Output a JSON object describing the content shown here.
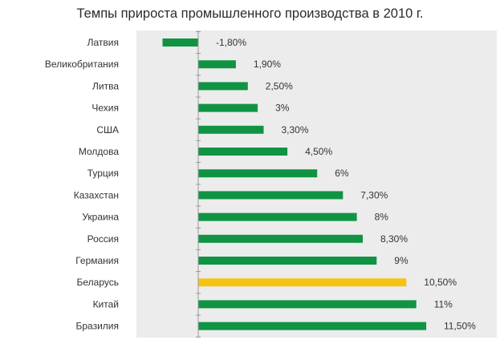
{
  "chart_data": {
    "type": "bar",
    "orientation": "horizontal",
    "title": "Темпы прироста промышленного производства в 2010 г.",
    "categories": [
      "Латвия",
      "Великобритания",
      "Литва",
      "Чехия",
      "США",
      "Молдова",
      "Турция",
      "Казахстан",
      "Украина",
      "Россия",
      "Германия",
      "Беларусь",
      "Китай",
      "Бразилия"
    ],
    "values": [
      -1.8,
      1.9,
      2.5,
      3.0,
      3.3,
      4.5,
      6.0,
      7.3,
      8.0,
      8.3,
      9.0,
      10.5,
      11.0,
      11.5
    ],
    "value_labels": [
      "-1,80%",
      "1,90%",
      "2,50%",
      "3%",
      "3,30%",
      "4,50%",
      "6%",
      "7,30%",
      "8%",
      "8,30%",
      "9%",
      "10,50%",
      "11%",
      "11,50%"
    ],
    "unit": "%",
    "xlim": [
      -3,
      13.5
    ],
    "grid": false,
    "colors": {
      "default_bar": "#109444",
      "highlight_bar": "#f5c313",
      "plot_background": "#ececec",
      "axis": "#9a9a9a"
    },
    "highlight_category": "Беларусь"
  }
}
